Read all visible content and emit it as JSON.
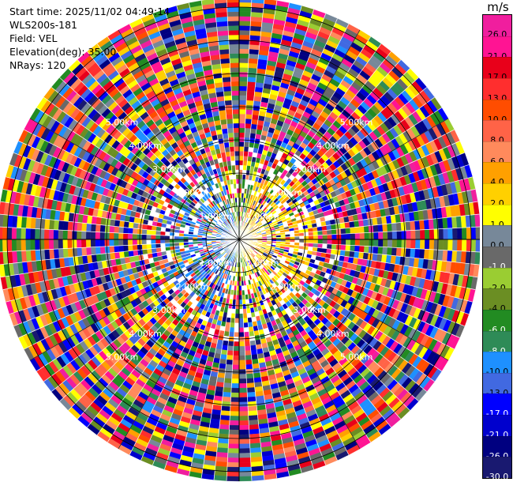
{
  "header": {
    "start_time": "Start time: 2025/11/02 04:49:14",
    "instrument": "WLS200s-181",
    "field": "Field: VEL",
    "elevation": "Elevation(deg): 35.00",
    "nrays": "NRays: 120"
  },
  "range_labels": [
    "1.00km",
    "2.00km",
    "3.00km",
    "4.00km",
    "5.00km"
  ],
  "colorbar": {
    "unit": "m/s",
    "levels": [
      {
        "label": "26.0",
        "color": "#f01e9e"
      },
      {
        "label": "21.0",
        "color": "#ff1493"
      },
      {
        "label": "17.0",
        "color": "#e8001a"
      },
      {
        "label": "13.0",
        "color": "#ff2e2e"
      },
      {
        "label": "10.0",
        "color": "#ff4d00"
      },
      {
        "label": "8.0",
        "color": "#ff6347"
      },
      {
        "label": "6.0",
        "color": "#ff8a5c"
      },
      {
        "label": "4.0",
        "color": "#ffa000"
      },
      {
        "label": "2.0",
        "color": "#ffd000"
      },
      {
        "label": "1.0",
        "color": "#ffff00"
      },
      {
        "label": "0.0",
        "color": "#778899"
      },
      {
        "label": "-1.0",
        "color": "#696969"
      },
      {
        "label": "-2.0",
        "color": "#9acd32"
      },
      {
        "label": "-4.0",
        "color": "#6b8e23"
      },
      {
        "label": "-6.0",
        "color": "#228b22"
      },
      {
        "label": "-8.0",
        "color": "#2e8b57"
      },
      {
        "label": "-10.0",
        "color": "#1e90ff"
      },
      {
        "label": "-13.0",
        "color": "#4169e1"
      },
      {
        "label": "-17.0",
        "color": "#0000ff"
      },
      {
        "label": "-21.0",
        "color": "#0000cd"
      },
      {
        "label": "-26.0",
        "color": "#000080"
      },
      {
        "label": "-30.0",
        "color": "#191970"
      }
    ]
  }
}
